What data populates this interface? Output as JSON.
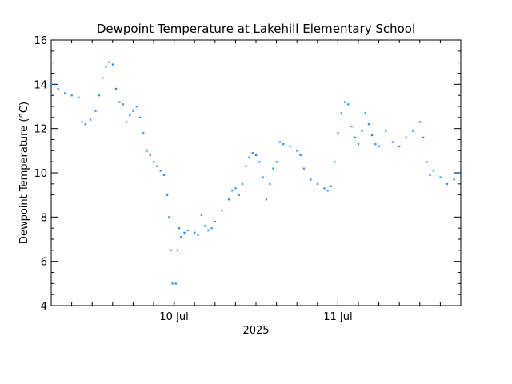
{
  "chart_data": {
    "type": "scatter",
    "title": "Dewpoint Temperature at Lakehill Elementary School",
    "xlabel": "2025",
    "ylabel": "Dewpoint Temperature (°C)",
    "ylim": [
      4,
      16
    ],
    "yticks": [
      4,
      6,
      8,
      10,
      12,
      14,
      16
    ],
    "xlim": [
      "2025-07-09T06:00",
      "2025-07-11T18:00"
    ],
    "xticks": [
      {
        "value": "2025-07-10T00:00",
        "label": "10 Jul"
      },
      {
        "value": "2025-07-11T00:00",
        "label": "11 Jul"
      }
    ],
    "grid": false,
    "series": [
      {
        "color": "#1a8cff",
        "points": [
          [
            "2025-07-09T06:00",
            14.0
          ],
          [
            "2025-07-09T06:30",
            14.0
          ],
          [
            "2025-07-09T07:00",
            13.8
          ],
          [
            "2025-07-09T08:00",
            13.6
          ],
          [
            "2025-07-09T09:00",
            13.5
          ],
          [
            "2025-07-09T10:00",
            13.4
          ],
          [
            "2025-07-09T10:30",
            12.3
          ],
          [
            "2025-07-09T11:00",
            12.2
          ],
          [
            "2025-07-09T11:45",
            12.4
          ],
          [
            "2025-07-09T12:30",
            12.8
          ],
          [
            "2025-07-09T13:00",
            13.5
          ],
          [
            "2025-07-09T13:30",
            14.3
          ],
          [
            "2025-07-09T14:00",
            14.8
          ],
          [
            "2025-07-09T14:30",
            15.0
          ],
          [
            "2025-07-09T15:00",
            14.9
          ],
          [
            "2025-07-09T15:30",
            13.8
          ],
          [
            "2025-07-09T16:00",
            13.2
          ],
          [
            "2025-07-09T16:30",
            13.1
          ],
          [
            "2025-07-09T17:00",
            12.3
          ],
          [
            "2025-07-09T17:30",
            12.6
          ],
          [
            "2025-07-09T18:00",
            12.8
          ],
          [
            "2025-07-09T18:30",
            13.0
          ],
          [
            "2025-07-09T19:00",
            12.5
          ],
          [
            "2025-07-09T19:30",
            11.8
          ],
          [
            "2025-07-09T20:00",
            11.0
          ],
          [
            "2025-07-09T20:30",
            10.8
          ],
          [
            "2025-07-09T21:00",
            10.5
          ],
          [
            "2025-07-09T21:30",
            10.3
          ],
          [
            "2025-07-09T22:00",
            10.1
          ],
          [
            "2025-07-09T22:30",
            9.9
          ],
          [
            "2025-07-09T23:00",
            9.0
          ],
          [
            "2025-07-09T23:15",
            8.0
          ],
          [
            "2025-07-09T23:30",
            6.5
          ],
          [
            "2025-07-09T23:45",
            5.0
          ],
          [
            "2025-07-10T00:00",
            4.1
          ],
          [
            "2025-07-10T00:15",
            5.0
          ],
          [
            "2025-07-10T00:30",
            6.5
          ],
          [
            "2025-07-10T00:45",
            7.5
          ],
          [
            "2025-07-10T01:00",
            7.1
          ],
          [
            "2025-07-10T01:30",
            7.3
          ],
          [
            "2025-07-10T02:00",
            7.4
          ],
          [
            "2025-07-10T03:00",
            7.3
          ],
          [
            "2025-07-10T03:30",
            7.2
          ],
          [
            "2025-07-10T04:00",
            8.1
          ],
          [
            "2025-07-10T04:30",
            7.6
          ],
          [
            "2025-07-10T05:00",
            7.4
          ],
          [
            "2025-07-10T05:30",
            7.5
          ],
          [
            "2025-07-10T06:00",
            7.8
          ],
          [
            "2025-07-10T07:00",
            8.3
          ],
          [
            "2025-07-10T08:00",
            8.8
          ],
          [
            "2025-07-10T08:30",
            9.2
          ],
          [
            "2025-07-10T09:00",
            9.3
          ],
          [
            "2025-07-10T09:30",
            9.0
          ],
          [
            "2025-07-10T10:00",
            9.5
          ],
          [
            "2025-07-10T10:30",
            10.3
          ],
          [
            "2025-07-10T11:00",
            10.7
          ],
          [
            "2025-07-10T11:30",
            10.9
          ],
          [
            "2025-07-10T12:00",
            10.8
          ],
          [
            "2025-07-10T12:30",
            10.5
          ],
          [
            "2025-07-10T13:00",
            9.8
          ],
          [
            "2025-07-10T13:30",
            8.8
          ],
          [
            "2025-07-10T14:00",
            9.5
          ],
          [
            "2025-07-10T14:30",
            10.2
          ],
          [
            "2025-07-10T15:00",
            10.5
          ],
          [
            "2025-07-10T15:30",
            11.4
          ],
          [
            "2025-07-10T16:00",
            11.3
          ],
          [
            "2025-07-10T17:00",
            11.2
          ],
          [
            "2025-07-10T18:00",
            11.0
          ],
          [
            "2025-07-10T18:30",
            10.8
          ],
          [
            "2025-07-10T19:00",
            10.2
          ],
          [
            "2025-07-10T20:00",
            9.7
          ],
          [
            "2025-07-10T21:00",
            9.5
          ],
          [
            "2025-07-10T22:00",
            9.3
          ],
          [
            "2025-07-10T22:30",
            9.2
          ],
          [
            "2025-07-10T23:00",
            9.4
          ],
          [
            "2025-07-10T23:30",
            10.5
          ],
          [
            "2025-07-11T00:00",
            11.8
          ],
          [
            "2025-07-11T00:30",
            12.7
          ],
          [
            "2025-07-11T01:00",
            13.2
          ],
          [
            "2025-07-11T01:30",
            13.1
          ],
          [
            "2025-07-11T02:00",
            12.1
          ],
          [
            "2025-07-11T02:30",
            11.6
          ],
          [
            "2025-07-11T03:00",
            11.3
          ],
          [
            "2025-07-11T03:30",
            11.9
          ],
          [
            "2025-07-11T04:00",
            12.7
          ],
          [
            "2025-07-11T04:30",
            12.2
          ],
          [
            "2025-07-11T05:00",
            11.7
          ],
          [
            "2025-07-11T05:30",
            11.3
          ],
          [
            "2025-07-11T06:00",
            11.2
          ],
          [
            "2025-07-11T07:00",
            11.9
          ],
          [
            "2025-07-11T08:00",
            11.4
          ],
          [
            "2025-07-11T09:00",
            11.2
          ],
          [
            "2025-07-11T10:00",
            11.6
          ],
          [
            "2025-07-11T11:00",
            11.9
          ],
          [
            "2025-07-11T12:00",
            12.3
          ],
          [
            "2025-07-11T12:30",
            11.6
          ],
          [
            "2025-07-11T13:00",
            10.5
          ],
          [
            "2025-07-11T13:30",
            9.9
          ],
          [
            "2025-07-11T14:00",
            10.1
          ],
          [
            "2025-07-11T15:00",
            9.8
          ],
          [
            "2025-07-11T16:00",
            9.5
          ],
          [
            "2025-07-11T17:00",
            9.7
          ],
          [
            "2025-07-11T18:00",
            9.9
          ]
        ]
      }
    ]
  }
}
